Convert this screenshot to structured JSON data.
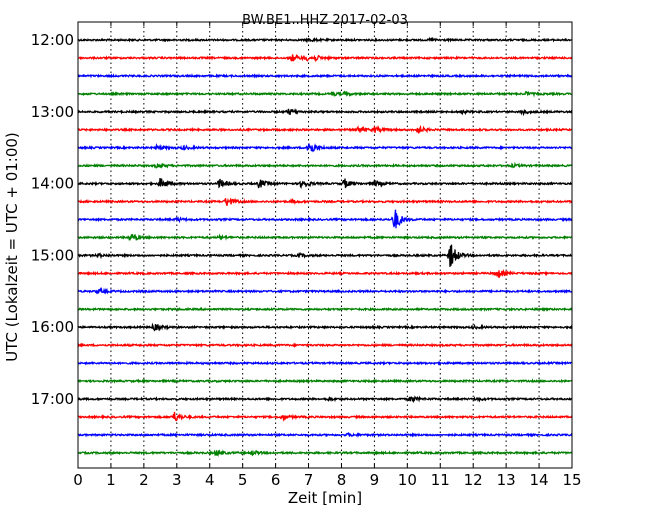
{
  "chart_data": {
    "type": "line",
    "title": "BW.BE1..HHZ 2017-02-03",
    "xlabel": "Zeit  [min]",
    "ylabel": "UTC (Lokalzeit = UTC + 01:00)",
    "xlim": [
      0,
      15
    ],
    "xticks": [
      0,
      1,
      2,
      3,
      4,
      5,
      6,
      7,
      8,
      9,
      10,
      11,
      12,
      13,
      14,
      15
    ],
    "ytick_labels": [
      "12:00",
      "13:00",
      "14:00",
      "15:00",
      "16:00",
      "17:00"
    ],
    "grid": true,
    "trace_interval_minutes": 15,
    "trace_colors": [
      "#000000",
      "#ff0000",
      "#0000ff",
      "#008000"
    ],
    "series": [
      {
        "start": "12:00",
        "events": [
          {
            "t": 7.0,
            "amp": 0.15
          },
          {
            "t": 10.7,
            "amp": 0.12
          }
        ]
      },
      {
        "start": "12:15",
        "events": [
          {
            "t": 6.5,
            "amp": 0.4
          },
          {
            "t": 6.9,
            "amp": 0.3
          },
          {
            "t": 7.2,
            "amp": 0.25
          }
        ]
      },
      {
        "start": "12:30",
        "events": []
      },
      {
        "start": "12:45",
        "events": [
          {
            "t": 7.7,
            "amp": 0.2
          },
          {
            "t": 8.1,
            "amp": 0.15
          },
          {
            "t": 13.6,
            "amp": 0.18
          }
        ]
      },
      {
        "start": "13:00",
        "events": [
          {
            "t": 6.4,
            "amp": 0.35
          },
          {
            "t": 11.6,
            "amp": 0.15
          },
          {
            "t": 13.5,
            "amp": 0.25
          }
        ]
      },
      {
        "start": "13:15",
        "events": [
          {
            "t": 8.5,
            "amp": 0.35
          },
          {
            "t": 9.0,
            "amp": 0.3
          },
          {
            "t": 10.3,
            "amp": 0.45
          }
        ]
      },
      {
        "start": "13:30",
        "events": [
          {
            "t": 2.4,
            "amp": 0.25
          },
          {
            "t": 3.2,
            "amp": 0.2
          },
          {
            "t": 7.0,
            "amp": 0.9
          }
        ]
      },
      {
        "start": "13:45",
        "events": [
          {
            "t": 2.4,
            "amp": 0.25
          },
          {
            "t": 13.2,
            "amp": 0.15
          }
        ]
      },
      {
        "start": "14:00",
        "events": [
          {
            "t": 2.5,
            "amp": 0.6
          },
          {
            "t": 4.3,
            "amp": 0.5
          },
          {
            "t": 5.5,
            "amp": 0.5
          },
          {
            "t": 6.8,
            "amp": 0.6
          },
          {
            "t": 8.1,
            "amp": 0.5
          },
          {
            "t": 9.0,
            "amp": 0.35
          }
        ]
      },
      {
        "start": "14:15",
        "events": [
          {
            "t": 4.5,
            "amp": 0.55
          },
          {
            "t": 6.5,
            "amp": 0.15
          }
        ]
      },
      {
        "start": "14:30",
        "events": [
          {
            "t": 3.0,
            "amp": 0.2
          },
          {
            "t": 9.6,
            "amp": 1.4
          }
        ]
      },
      {
        "start": "14:45",
        "events": [
          {
            "t": 1.6,
            "amp": 0.5
          },
          {
            "t": 4.3,
            "amp": 0.15
          }
        ]
      },
      {
        "start": "15:00",
        "events": [
          {
            "t": 0.6,
            "amp": 0.2
          },
          {
            "t": 6.7,
            "amp": 0.2
          },
          {
            "t": 11.3,
            "amp": 1.5
          }
        ]
      },
      {
        "start": "15:15",
        "events": [
          {
            "t": 12.7,
            "amp": 0.6
          }
        ]
      },
      {
        "start": "15:30",
        "events": [
          {
            "t": 0.6,
            "amp": 0.25
          }
        ]
      },
      {
        "start": "15:45",
        "events": []
      },
      {
        "start": "16:00",
        "events": [
          {
            "t": 2.3,
            "amp": 0.4
          },
          {
            "t": 12.0,
            "amp": 0.15
          }
        ]
      },
      {
        "start": "16:15",
        "events": []
      },
      {
        "start": "16:30",
        "events": []
      },
      {
        "start": "16:45",
        "events": []
      },
      {
        "start": "17:00",
        "events": [
          {
            "t": 7.6,
            "amp": 0.15
          },
          {
            "t": 10.1,
            "amp": 0.3
          },
          {
            "t": 12.1,
            "amp": 0.15
          }
        ]
      },
      {
        "start": "17:15",
        "events": [
          {
            "t": 2.9,
            "amp": 0.65
          },
          {
            "t": 6.2,
            "amp": 0.3
          }
        ]
      },
      {
        "start": "17:30",
        "events": [
          {
            "t": 8.2,
            "amp": 0.15
          }
        ]
      },
      {
        "start": "17:45",
        "events": [
          {
            "t": 4.2,
            "amp": 0.3
          },
          {
            "t": 5.3,
            "amp": 0.25
          }
        ]
      }
    ]
  }
}
